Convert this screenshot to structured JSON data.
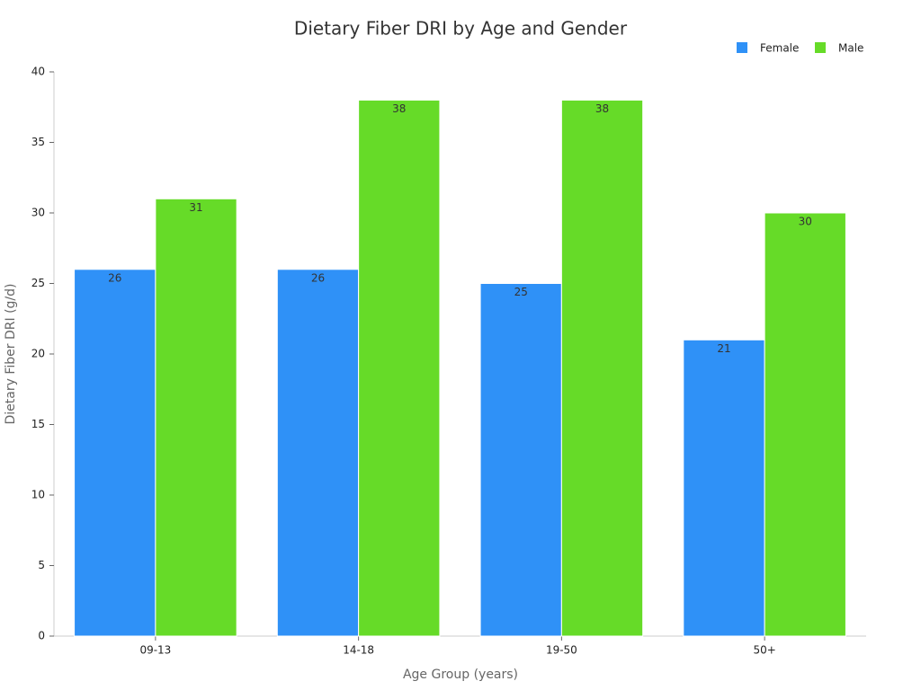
{
  "chart_data": {
    "type": "bar",
    "title": "Dietary Fiber DRI by Age and Gender",
    "x_label": "Age Group (years)",
    "y_label": "Dietary Fiber DRI (g/d)",
    "categories": [
      "09-13",
      "14-18",
      "19-50",
      "50+"
    ],
    "series": [
      {
        "name": "Female",
        "color": "#2f91f7",
        "values": [
          26,
          26,
          25,
          21
        ]
      },
      {
        "name": "Male",
        "color": "#66db28",
        "values": [
          31,
          38,
          38,
          30
        ]
      }
    ],
    "ylim": [
      0,
      40
    ],
    "yticks": [
      0,
      5,
      10,
      15,
      20,
      25,
      30,
      35,
      40
    ],
    "grid": false,
    "legend": "top-right",
    "data_labels": true
  }
}
